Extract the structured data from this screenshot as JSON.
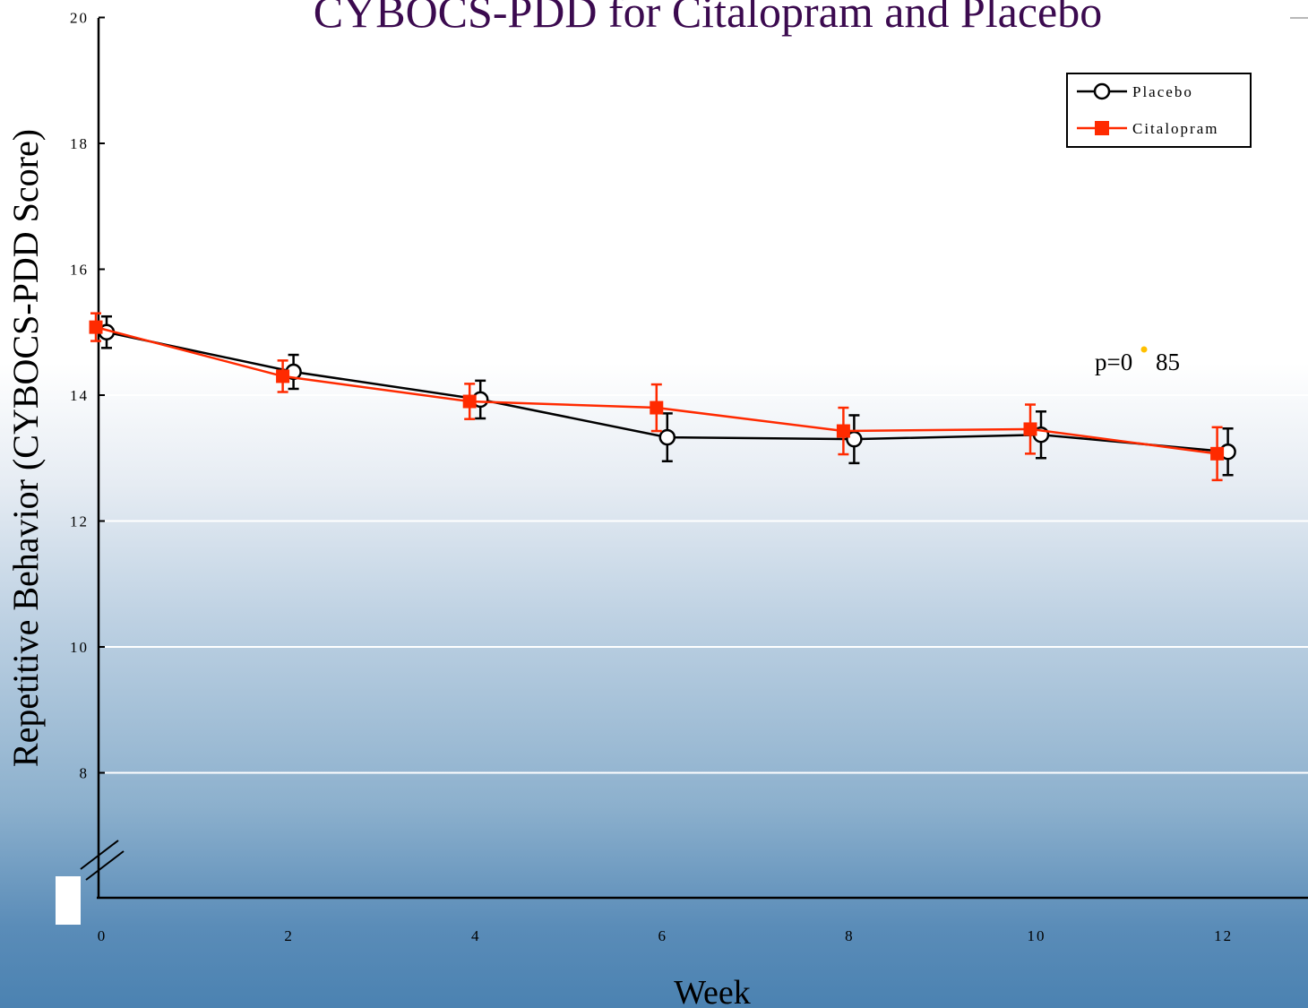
{
  "chart_data": {
    "type": "line",
    "title": "CYBOCS-PDD for Citalopram and Placebo",
    "xlabel": "Week",
    "ylabel": "Repetitive Behavior (CYBOCS-PDD Score)",
    "x": [
      0,
      2,
      4,
      6,
      8,
      10,
      12
    ],
    "x_ticks": [
      "0",
      "2",
      "4",
      "6",
      "8",
      "10",
      "12"
    ],
    "y_ticks": [
      "8",
      "10",
      "12",
      "14",
      "16",
      "18",
      "20"
    ],
    "ylim": [
      6,
      20
    ],
    "y_axis_break": true,
    "grid": "horizontal",
    "legend_position": "top-right",
    "series": [
      {
        "name": "Placebo",
        "color": "#000000",
        "marker": "open-circle",
        "values": [
          15.0,
          14.37,
          13.93,
          13.33,
          13.3,
          13.37,
          13.1
        ],
        "error": [
          0.25,
          0.27,
          0.3,
          0.38,
          0.38,
          0.37,
          0.37
        ]
      },
      {
        "name": "Citalopram",
        "color": "#ff2a00",
        "marker": "filled-square",
        "values": [
          15.08,
          14.3,
          13.9,
          13.8,
          13.43,
          13.46,
          13.07
        ],
        "error": [
          0.22,
          0.25,
          0.28,
          0.37,
          0.37,
          0.39,
          0.42
        ]
      }
    ],
    "annotations": [
      {
        "text_before": "p=0",
        "text_after": "85",
        "dot_color": "#ffc000"
      }
    ]
  }
}
